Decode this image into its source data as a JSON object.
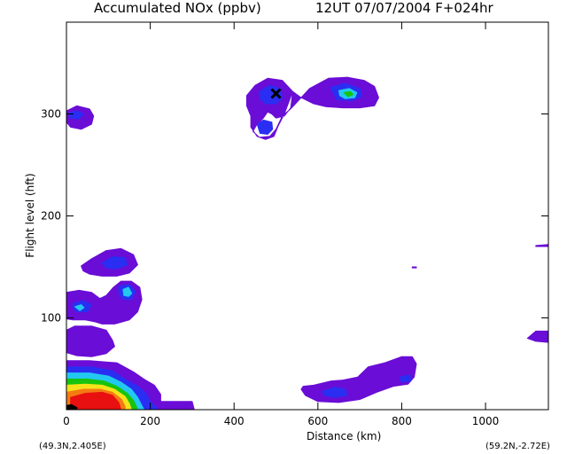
{
  "title_left": "Accumulated NOx  (ppbv)",
  "title_right": "12UT 07/07/2004  F+024hr",
  "loc_start": "(49.3N,2.405E)",
  "loc_end": "(59.2N,-2.72E)",
  "chart_data": {
    "type": "heatmap",
    "xlabel": "Distance  (km)",
    "ylabel": "Flight level  (hft)",
    "xlim": [
      0,
      1150
    ],
    "ylim": [
      10,
      390
    ],
    "x_ticks": [
      0,
      200,
      400,
      600,
      800,
      1000
    ],
    "y_ticks": [
      100,
      200,
      300
    ],
    "marker": {
      "symbol": "X",
      "x": 500,
      "y": 320
    },
    "levels": [
      {
        "name": "purple",
        "color": "#6a0dd6"
      },
      {
        "name": "blue",
        "color": "#2a2ef2"
      },
      {
        "name": "cyan",
        "color": "#22c8f0"
      },
      {
        "name": "green",
        "color": "#16c40e"
      },
      {
        "name": "yellow",
        "color": "#f5e21a"
      },
      {
        "name": "orange",
        "color": "#f57a12"
      },
      {
        "name": "red",
        "color": "#e81010"
      },
      {
        "name": "black",
        "color": "#000000"
      }
    ],
    "regions": [
      {
        "level": "purple",
        "points": [
          [
            0,
            303
          ],
          [
            25,
            308
          ],
          [
            55,
            305
          ],
          [
            65,
            298
          ],
          [
            60,
            290
          ],
          [
            35,
            285
          ],
          [
            10,
            287
          ],
          [
            0,
            292
          ]
        ]
      },
      {
        "level": "blue",
        "points": [
          [
            5,
            301
          ],
          [
            25,
            303
          ],
          [
            40,
            300
          ],
          [
            30,
            295
          ],
          [
            10,
            296
          ]
        ]
      },
      {
        "level": "purple",
        "points": [
          [
            430,
            318
          ],
          [
            450,
            328
          ],
          [
            480,
            335
          ],
          [
            515,
            333
          ],
          [
            540,
            322
          ],
          [
            535,
            306
          ],
          [
            520,
            298
          ],
          [
            500,
            296
          ],
          [
            490,
            300
          ],
          [
            480,
            302
          ],
          [
            470,
            296
          ],
          [
            455,
            290
          ],
          [
            445,
            283
          ],
          [
            460,
            277
          ],
          [
            485,
            278
          ],
          [
            500,
            285
          ],
          [
            515,
            298
          ],
          [
            535,
            305
          ],
          [
            560,
            316
          ],
          [
            580,
            325
          ],
          [
            625,
            335
          ],
          [
            670,
            336
          ],
          [
            710,
            333
          ],
          [
            735,
            327
          ],
          [
            745,
            316
          ],
          [
            735,
            308
          ],
          [
            700,
            306
          ],
          [
            660,
            306
          ],
          [
            620,
            307
          ],
          [
            590,
            310
          ],
          [
            560,
            316
          ],
          [
            540,
            322
          ],
          [
            520,
            300
          ],
          [
            505,
            288
          ],
          [
            495,
            278
          ],
          [
            475,
            275
          ],
          [
            455,
            278
          ],
          [
            440,
            287
          ],
          [
            440,
            298
          ],
          [
            430,
            308
          ]
        ]
      },
      {
        "level": "blue",
        "points": [
          [
            460,
            322
          ],
          [
            485,
            328
          ],
          [
            510,
            325
          ],
          [
            515,
            316
          ],
          [
            500,
            310
          ],
          [
            475,
            310
          ],
          [
            462,
            315
          ]
        ]
      },
      {
        "level": "blue",
        "points": [
          [
            455,
            290
          ],
          [
            470,
            294
          ],
          [
            490,
            292
          ],
          [
            492,
            285
          ],
          [
            480,
            280
          ],
          [
            462,
            281
          ]
        ]
      },
      {
        "level": "blue",
        "points": [
          [
            630,
            326
          ],
          [
            665,
            330
          ],
          [
            700,
            325
          ],
          [
            705,
            317
          ],
          [
            680,
            313
          ],
          [
            645,
            314
          ]
        ]
      },
      {
        "level": "cyan",
        "points": [
          [
            650,
            323
          ],
          [
            675,
            325
          ],
          [
            693,
            321
          ],
          [
            688,
            316
          ],
          [
            665,
            315
          ],
          [
            652,
            318
          ]
        ]
      },
      {
        "level": "green",
        "points": [
          [
            662,
            321
          ],
          [
            678,
            322
          ],
          [
            684,
            319
          ],
          [
            672,
            317
          ]
        ]
      },
      {
        "level": "purple",
        "points": [
          [
            35,
            151
          ],
          [
            60,
            158
          ],
          [
            95,
            166
          ],
          [
            130,
            168
          ],
          [
            160,
            162
          ],
          [
            170,
            152
          ],
          [
            150,
            144
          ],
          [
            120,
            141
          ],
          [
            85,
            141
          ],
          [
            55,
            143
          ],
          [
            40,
            146
          ]
        ]
      },
      {
        "level": "blue",
        "points": [
          [
            85,
            154
          ],
          [
            110,
            160
          ],
          [
            140,
            159
          ],
          [
            145,
            152
          ],
          [
            120,
            148
          ],
          [
            95,
            149
          ]
        ]
      },
      {
        "level": "purple",
        "points": [
          [
            0,
            125
          ],
          [
            30,
            127
          ],
          [
            60,
            125
          ],
          [
            80,
            119
          ],
          [
            95,
            122
          ],
          [
            112,
            130
          ],
          [
            130,
            136
          ],
          [
            155,
            136
          ],
          [
            175,
            130
          ],
          [
            180,
            118
          ],
          [
            170,
            106
          ],
          [
            150,
            98
          ],
          [
            115,
            94
          ],
          [
            85,
            94
          ],
          [
            70,
            96
          ],
          [
            45,
            98
          ],
          [
            15,
            98
          ],
          [
            0,
            99
          ]
        ]
      },
      {
        "level": "blue",
        "points": [
          [
            15,
            114
          ],
          [
            40,
            117
          ],
          [
            60,
            113
          ],
          [
            50,
            106
          ],
          [
            25,
            106
          ],
          [
            15,
            110
          ]
        ]
      },
      {
        "level": "blue",
        "points": [
          [
            125,
            131
          ],
          [
            150,
            133
          ],
          [
            165,
            126
          ],
          [
            155,
            118
          ],
          [
            135,
            118
          ],
          [
            125,
            124
          ]
        ]
      },
      {
        "level": "cyan",
        "points": [
          [
            135,
            128
          ],
          [
            148,
            130
          ],
          [
            156,
            124
          ],
          [
            148,
            121
          ],
          [
            137,
            122
          ]
        ]
      },
      {
        "level": "cyan",
        "points": [
          [
            20,
            111
          ],
          [
            35,
            113
          ],
          [
            42,
            110
          ],
          [
            32,
            107
          ]
        ]
      },
      {
        "level": "purple",
        "points": [
          [
            0,
            88
          ],
          [
            20,
            92
          ],
          [
            60,
            92
          ],
          [
            95,
            88
          ],
          [
            110,
            78
          ],
          [
            115,
            72
          ],
          [
            95,
            65
          ],
          [
            60,
            62
          ],
          [
            25,
            63
          ],
          [
            0,
            66
          ]
        ]
      },
      {
        "level": "purple",
        "points": [
          [
            0,
            58
          ],
          [
            55,
            58
          ],
          [
            120,
            56
          ],
          [
            160,
            47
          ],
          [
            185,
            40
          ],
          [
            210,
            34
          ],
          [
            225,
            25
          ],
          [
            225,
            18
          ],
          [
            300,
            18
          ],
          [
            305,
            10
          ],
          [
            0,
            10
          ]
        ]
      },
      {
        "level": "blue",
        "points": [
          [
            0,
            52
          ],
          [
            60,
            52
          ],
          [
            110,
            48
          ],
          [
            140,
            40
          ],
          [
            170,
            33
          ],
          [
            190,
            26
          ],
          [
            200,
            18
          ],
          [
            215,
            12
          ],
          [
            215,
            10
          ],
          [
            0,
            10
          ]
        ]
      },
      {
        "level": "cyan",
        "points": [
          [
            0,
            46
          ],
          [
            55,
            46
          ],
          [
            100,
            43
          ],
          [
            130,
            37
          ],
          [
            155,
            30
          ],
          [
            170,
            22
          ],
          [
            180,
            14
          ],
          [
            185,
            10
          ],
          [
            0,
            10
          ]
        ]
      },
      {
        "level": "green",
        "points": [
          [
            0,
            40
          ],
          [
            50,
            40
          ],
          [
            90,
            38
          ],
          [
            120,
            33
          ],
          [
            145,
            26
          ],
          [
            160,
            19
          ],
          [
            168,
            12
          ],
          [
            170,
            10
          ],
          [
            0,
            10
          ]
        ]
      },
      {
        "level": "yellow",
        "points": [
          [
            0,
            34
          ],
          [
            45,
            35
          ],
          [
            85,
            34
          ],
          [
            115,
            30
          ],
          [
            140,
            23
          ],
          [
            150,
            16
          ],
          [
            155,
            10
          ],
          [
            0,
            10
          ]
        ]
      },
      {
        "level": "orange",
        "points": [
          [
            0,
            27
          ],
          [
            40,
            30
          ],
          [
            80,
            30
          ],
          [
            110,
            27
          ],
          [
            132,
            20
          ],
          [
            140,
            13
          ],
          [
            140,
            10
          ],
          [
            0,
            10
          ]
        ]
      },
      {
        "level": "red",
        "points": [
          [
            10,
            22
          ],
          [
            45,
            26
          ],
          [
            85,
            27
          ],
          [
            110,
            24
          ],
          [
            125,
            17
          ],
          [
            130,
            10
          ],
          [
            10,
            10
          ]
        ]
      },
      {
        "level": "black",
        "points": [
          [
            0,
            14
          ],
          [
            12,
            15
          ],
          [
            25,
            12
          ],
          [
            25,
            10
          ],
          [
            0,
            10
          ]
        ]
      },
      {
        "level": "purple",
        "points": [
          [
            565,
            33
          ],
          [
            590,
            34
          ],
          [
            630,
            38
          ],
          [
            660,
            39
          ],
          [
            695,
            42
          ],
          [
            720,
            52
          ],
          [
            760,
            56
          ],
          [
            800,
            62
          ],
          [
            825,
            62
          ],
          [
            835,
            55
          ],
          [
            830,
            42
          ],
          [
            815,
            35
          ],
          [
            780,
            33
          ],
          [
            740,
            27
          ],
          [
            700,
            20
          ],
          [
            650,
            17
          ],
          [
            600,
            18
          ],
          [
            570,
            24
          ],
          [
            560,
            30
          ]
        ]
      },
      {
        "level": "blue",
        "points": [
          [
            610,
            28
          ],
          [
            640,
            32
          ],
          [
            665,
            30
          ],
          [
            670,
            24
          ],
          [
            640,
            22
          ],
          [
            615,
            24
          ]
        ]
      },
      {
        "level": "blue",
        "points": [
          [
            795,
            42
          ],
          [
            820,
            44
          ],
          [
            822,
            38
          ],
          [
            800,
            37
          ]
        ]
      },
      {
        "level": "purple",
        "points": [
          [
            1100,
            80
          ],
          [
            1120,
            87
          ],
          [
            1150,
            87
          ],
          [
            1150,
            76
          ],
          [
            1120,
            77
          ]
        ]
      },
      {
        "level": "purple",
        "points": [
          [
            1120,
            171
          ],
          [
            1150,
            172
          ],
          [
            1150,
            170
          ],
          [
            1120,
            170
          ]
        ]
      },
      {
        "level": "purple",
        "points": [
          [
            825,
            150
          ],
          [
            835,
            150
          ],
          [
            835,
            149
          ],
          [
            825,
            149
          ]
        ]
      }
    ]
  }
}
